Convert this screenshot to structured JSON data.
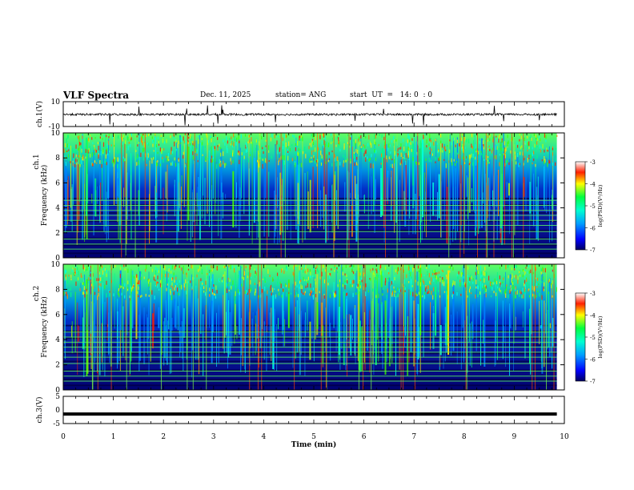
{
  "header": {
    "title": "VLF Spectra",
    "date": "Dec. 11, 2025",
    "station": "station= ANG",
    "start": "start  UT  =   14: 0  : 0"
  },
  "colors": {
    "plot_frame": "#000000",
    "spectro_bg": "#0a1090",
    "trace": "#000000"
  },
  "chart_data": [
    {
      "type": "line",
      "name": "ch.1 waveform",
      "ylabel": "ch.1(V)",
      "ylim": [
        -10,
        10
      ],
      "yticks": [
        "10",
        "-10"
      ],
      "xlim": [
        0,
        10
      ],
      "description_level": -0.3
    },
    {
      "type": "heatmap",
      "name": "ch.1 spectrogram",
      "ylabel_top": "ch.1",
      "ylabel": "Frequency  (kHz)",
      "ylim": [
        0,
        10
      ],
      "yticks": [
        "0",
        "2",
        "4",
        "6",
        "8",
        "10"
      ],
      "xlim": [
        0,
        10
      ],
      "colorbar": {
        "label": "log(PSD)(V²/Hz)",
        "ticks": [
          "-3",
          "-4",
          "-5",
          "-6",
          "-7"
        ],
        "range": [
          -7,
          -3
        ]
      }
    },
    {
      "type": "heatmap",
      "name": "ch.2 spectrogram",
      "ylabel_top": "ch.2",
      "ylabel": "Frequency  (kHz)",
      "ylim": [
        0,
        10
      ],
      "yticks": [
        "0",
        "2",
        "4",
        "6",
        "8",
        "10"
      ],
      "xlim": [
        0,
        10
      ],
      "colorbar": {
        "label": "log(PSD)(V²/Hz)",
        "ticks": [
          "-3",
          "-4",
          "-5",
          "-6",
          "-7"
        ],
        "range": [
          -7,
          -3
        ]
      }
    },
    {
      "type": "line",
      "name": "ch.3 waveform",
      "ylabel": "ch.3(V)",
      "ylim": [
        -5,
        5
      ],
      "yticks": [
        "5",
        "0",
        "-5"
      ],
      "xlim": [
        0,
        10
      ],
      "level": -1.5
    }
  ],
  "xaxis": {
    "label": "Time  (min)",
    "ticks": [
      "0",
      "1",
      "2",
      "3",
      "4",
      "5",
      "6",
      "7",
      "8",
      "9",
      "10"
    ],
    "range": [
      0,
      10
    ]
  }
}
